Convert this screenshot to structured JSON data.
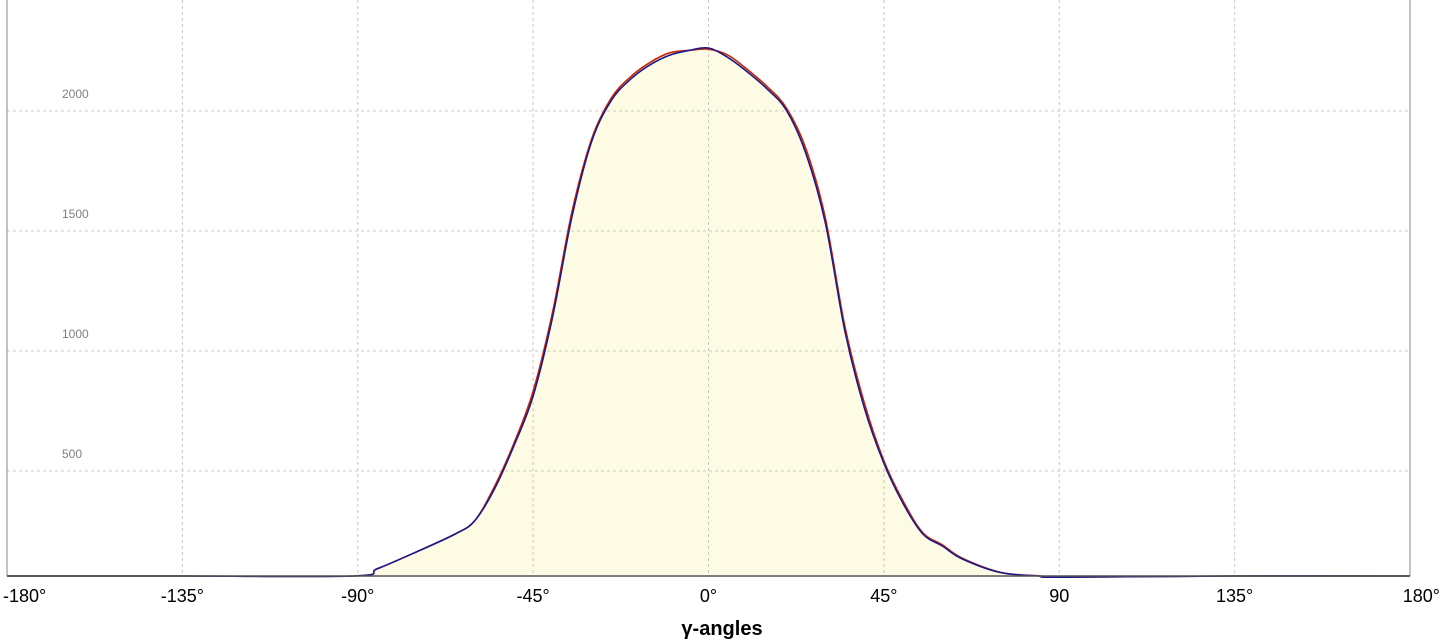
{
  "chart_data": {
    "type": "line",
    "title": "",
    "xlabel": "γ-angles",
    "ylabel": "",
    "xlim": [
      -180,
      180
    ],
    "ylim": [
      0,
      2400
    ],
    "grid": true,
    "grid_style": "dashed",
    "legend": "none",
    "x_ticks": [
      -180,
      -135,
      -90,
      -45,
      0,
      45,
      90,
      135,
      180
    ],
    "x_tick_labels": [
      "-180°",
      "-135°",
      "-90°",
      "-45°",
      "0°",
      "45°",
      "90",
      "135°",
      "180°"
    ],
    "y_ticks": [
      500,
      1000,
      1500,
      2000
    ],
    "y_tick_labels": [
      "500",
      "1000",
      "1500",
      "2000"
    ],
    "fill_color": "#fdfbe3",
    "series": [
      {
        "color": "#cc2200",
        "x": [
          -180,
          -135,
          -91,
          -85,
          -75,
          -65,
          -60,
          -55,
          -50,
          -45,
          -40,
          -35,
          -30,
          -25,
          -20,
          -15,
          -10,
          -5,
          0,
          5,
          10,
          15,
          20,
          25,
          30,
          35,
          40,
          45,
          50,
          55,
          60,
          65,
          75,
          85,
          90,
          135,
          180
        ],
        "y": [
          0,
          0,
          0,
          30,
          100,
          175,
          230,
          370,
          550,
          770,
          1100,
          1520,
          1820,
          1990,
          2080,
          2140,
          2180,
          2190,
          2195,
          2170,
          2110,
          2040,
          1950,
          1780,
          1490,
          1040,
          720,
          480,
          310,
          180,
          130,
          75,
          15,
          0,
          -5,
          0,
          0
        ]
      },
      {
        "color": "#1a1a8c",
        "x": [
          -180,
          -135,
          -91,
          -85,
          -75,
          -65,
          -60,
          -55,
          -50,
          -45,
          -40,
          -35,
          -30,
          -25,
          -20,
          -15,
          -10,
          -5,
          0,
          5,
          10,
          15,
          20,
          25,
          30,
          35,
          40,
          45,
          50,
          55,
          60,
          65,
          75,
          85,
          90,
          135,
          180
        ],
        "y": [
          0,
          0,
          0,
          30,
          100,
          175,
          230,
          360,
          540,
          750,
          1080,
          1500,
          1810,
          1980,
          2070,
          2130,
          2170,
          2190,
          2200,
          2160,
          2100,
          2030,
          1940,
          1760,
          1470,
          1020,
          700,
          470,
          300,
          175,
          125,
          72,
          14,
          0,
          -5,
          0,
          0
        ]
      }
    ]
  }
}
